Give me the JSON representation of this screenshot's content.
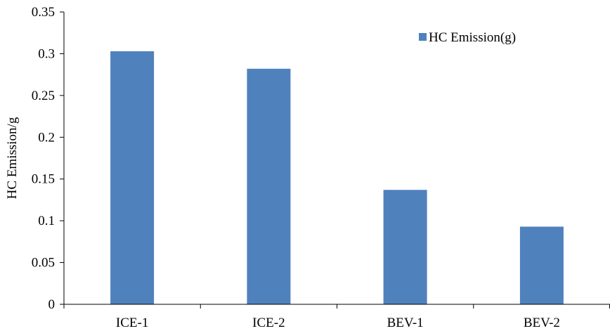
{
  "chart_data": {
    "type": "bar",
    "categories": [
      "ICE-1",
      "ICE-2",
      "BEV-1",
      "BEV-2"
    ],
    "series": [
      {
        "name": "HC Emission(g)",
        "values": [
          0.303,
          0.282,
          0.137,
          0.093
        ],
        "color": "#4F81BD"
      }
    ],
    "title": "",
    "xlabel": "",
    "ylabel": "HC Emission/g",
    "ylim": [
      0,
      0.35
    ],
    "yticks": [
      0,
      0.05,
      0.1,
      0.15,
      0.2,
      0.25,
      0.3,
      0.35
    ],
    "ytick_labels": [
      "0",
      "0.05",
      "0.1",
      "0.15",
      "0.2",
      "0.25",
      "0.3",
      "0.35"
    ],
    "grid": false,
    "legend_position": "top-right"
  }
}
